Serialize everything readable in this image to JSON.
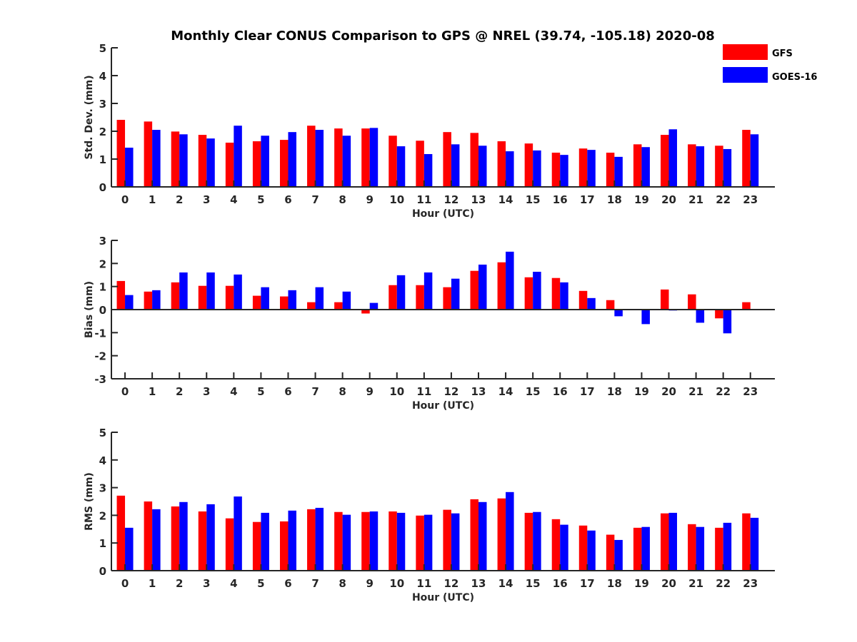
{
  "chart_data": {
    "type": "bar",
    "title": "Monthly Clear CONUS Comparison to GPS @ NREL (39.74, -105.18) 2020-08",
    "legend": {
      "placement": "top-right",
      "entries": [
        {
          "name": "GFS",
          "color": "#ff0000"
        },
        {
          "name": "GOES-16",
          "color": "#0000ff"
        }
      ]
    },
    "categories": [
      "0",
      "1",
      "2",
      "3",
      "4",
      "5",
      "6",
      "7",
      "8",
      "9",
      "10",
      "11",
      "12",
      "13",
      "14",
      "15",
      "16",
      "17",
      "18",
      "19",
      "20",
      "21",
      "22",
      "23"
    ],
    "panels": [
      {
        "id": "std",
        "xlabel": "Hour (UTC)",
        "ylabel": "Std. Dev. (mm)",
        "ylim": [
          0,
          5
        ],
        "yticks": [
          0,
          1,
          2,
          3,
          4,
          5
        ],
        "series": [
          {
            "name": "GFS",
            "values": [
              2.41,
              2.35,
              1.99,
              1.87,
              1.59,
              1.64,
              1.69,
              2.2,
              2.1,
              2.1,
              1.84,
              1.66,
              1.97,
              1.94,
              1.64,
              1.56,
              1.23,
              1.38,
              1.23,
              1.53,
              1.87,
              1.53,
              1.48,
              2.05
            ]
          },
          {
            "name": "GOES-16",
            "values": [
              1.41,
              2.05,
              1.89,
              1.74,
              2.2,
              1.84,
              1.97,
              2.05,
              1.84,
              2.12,
              1.46,
              1.18,
              1.53,
              1.48,
              1.28,
              1.31,
              1.15,
              1.33,
              1.08,
              1.43,
              2.07,
              1.46,
              1.36,
              1.89
            ]
          }
        ]
      },
      {
        "id": "bias",
        "xlabel": "Hour (UTC)",
        "ylabel": "Bias (mm)",
        "ylim": [
          -3,
          3
        ],
        "yticks": [
          -3,
          -2,
          -1,
          0,
          1,
          2,
          3
        ],
        "series": [
          {
            "name": "GFS",
            "values": [
              1.24,
              0.78,
              1.18,
              1.03,
              1.03,
              0.6,
              0.57,
              0.32,
              0.32,
              -0.17,
              1.06,
              1.06,
              0.97,
              1.68,
              2.05,
              1.4,
              1.37,
              0.81,
              0.41,
              0.0,
              0.87,
              0.66,
              -0.38,
              0.32
            ]
          },
          {
            "name": "GOES-16",
            "values": [
              0.63,
              0.84,
              1.61,
              1.61,
              1.52,
              0.97,
              0.84,
              0.97,
              0.78,
              0.29,
              1.49,
              1.61,
              1.34,
              1.95,
              2.51,
              1.64,
              1.18,
              0.5,
              -0.29,
              -0.63,
              -0.04,
              -0.57,
              -1.03,
              0.0
            ]
          }
        ]
      },
      {
        "id": "rms",
        "xlabel": "Hour (UTC)",
        "ylabel": "RMS (mm)",
        "ylim": [
          0,
          5
        ],
        "yticks": [
          0,
          1,
          2,
          3,
          4,
          5
        ],
        "series": [
          {
            "name": "GFS",
            "values": [
              2.71,
              2.5,
              2.32,
              2.14,
              1.89,
              1.76,
              1.78,
              2.22,
              2.12,
              2.12,
              2.14,
              1.99,
              2.2,
              2.58,
              2.61,
              2.09,
              1.86,
              1.63,
              1.3,
              1.55,
              2.07,
              1.68,
              1.55,
              2.07
            ]
          },
          {
            "name": "GOES-16",
            "values": [
              1.55,
              2.22,
              2.48,
              2.4,
              2.68,
              2.09,
              2.17,
              2.27,
              2.02,
              2.14,
              2.09,
              2.02,
              2.07,
              2.48,
              2.84,
              2.12,
              1.66,
              1.45,
              1.11,
              1.58,
              2.09,
              1.58,
              1.73,
              1.91
            ]
          }
        ]
      }
    ]
  }
}
